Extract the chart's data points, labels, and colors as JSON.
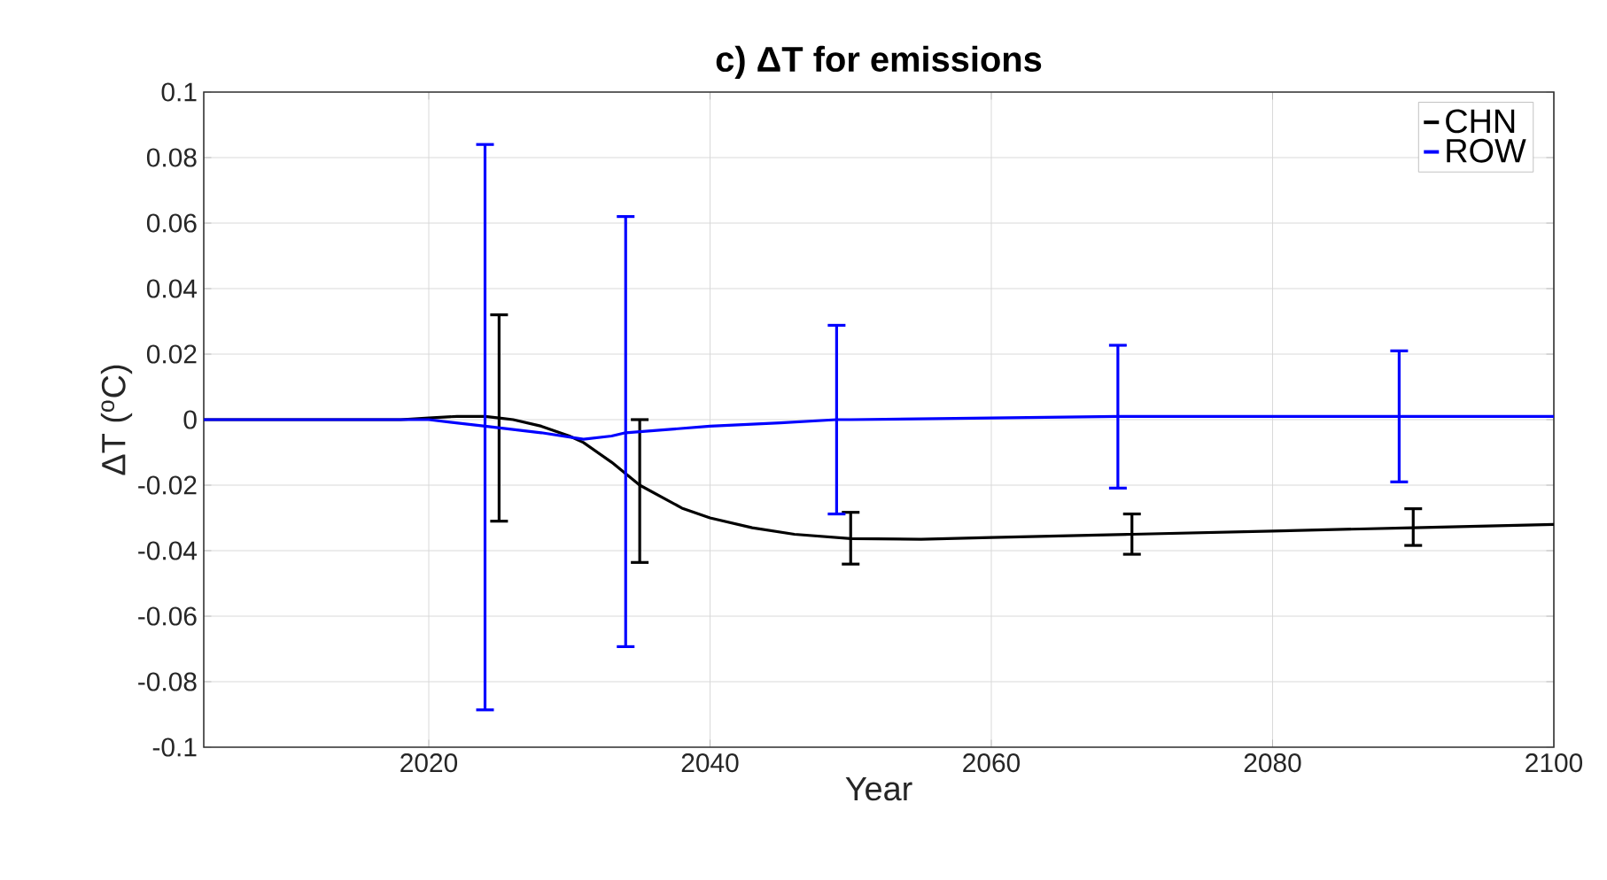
{
  "chart_data": {
    "type": "line",
    "title": "c) ΔT for emissions",
    "xlabel": "Year",
    "ylabel": "ΔT ($^{o}$C)",
    "xlim": [
      2004,
      2100
    ],
    "xticks": [
      2020,
      2040,
      2060,
      2080,
      2100
    ],
    "ylim": [
      -0.1,
      0.1
    ],
    "yticks": [
      -0.1,
      -0.08,
      -0.06,
      -0.04,
      -0.02,
      0,
      0.02,
      0.04,
      0.06,
      0.08,
      0.1
    ],
    "grid": true,
    "legend": "top right",
    "marker": "none",
    "line_style": "solid",
    "series": [
      {
        "name": "CHN",
        "color": "#000000",
        "x": [
          2004,
          2018,
          2020,
          2022,
          2024,
          2025,
          2026,
          2028,
          2030,
          2031,
          2033,
          2035,
          2038,
          2040,
          2043,
          2046,
          2050,
          2055,
          2060,
          2070,
          2080,
          2090,
          2100
        ],
        "values": [
          0,
          0,
          0.0005,
          0.001,
          0.001,
          0.0005,
          0,
          -0.002,
          -0.005,
          -0.007,
          -0.013,
          -0.02,
          -0.027,
          -0.03,
          -0.033,
          -0.035,
          -0.0363,
          -0.0365,
          -0.036,
          -0.035,
          -0.034,
          -0.033,
          -0.032
        ],
        "errors": [
          null,
          null,
          null,
          null,
          null,
          [
            -0.031,
            0.032
          ],
          null,
          null,
          null,
          null,
          null,
          [
            -0.0436,
            0
          ],
          null,
          null,
          null,
          null,
          [
            -0.0441,
            -0.0283
          ],
          null,
          null,
          [
            -0.0411,
            -0.0288
          ],
          null,
          [
            -0.0384,
            -0.0272
          ],
          null
        ]
      },
      {
        "name": "ROW",
        "color": "#0000ff",
        "x": [
          2004,
          2020,
          2024,
          2028,
          2031,
          2033,
          2034,
          2035,
          2040,
          2045,
          2049,
          2050,
          2060,
          2069,
          2080,
          2089,
          2100
        ],
        "values": [
          0,
          0,
          -0.002,
          -0.004,
          -0.006,
          -0.005,
          -0.004,
          -0.0037,
          -0.002,
          -0.001,
          0,
          0,
          0.0005,
          0.001,
          0.001,
          0.001,
          0.001
        ],
        "errors": [
          null,
          null,
          [
            -0.0886,
            0.084
          ],
          null,
          null,
          null,
          [
            -0.0693,
            0.062
          ],
          null,
          null,
          null,
          [
            -0.0288,
            0.0288
          ],
          null,
          null,
          [
            -0.0209,
            0.0227
          ],
          null,
          [
            -0.019,
            0.021
          ],
          null
        ]
      }
    ]
  }
}
